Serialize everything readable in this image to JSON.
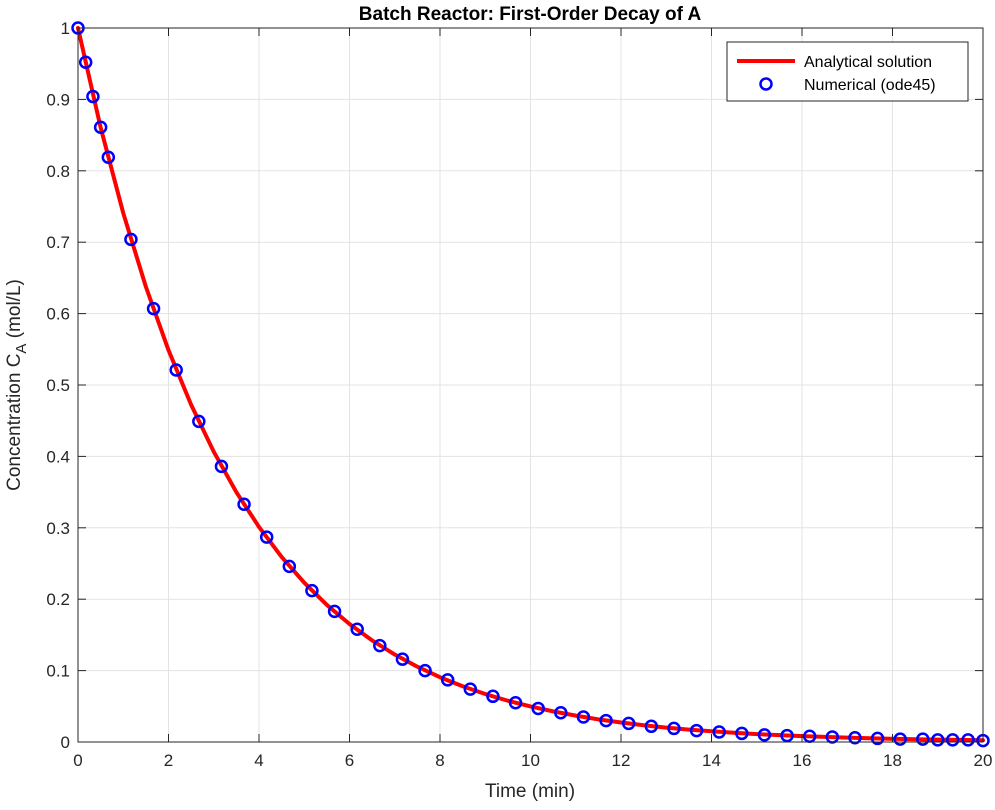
{
  "chart_data": {
    "type": "line",
    "title": "Batch Reactor: First-Order Decay of A",
    "xlabel": "Time (min)",
    "ylabel": {
      "prefix": "Concentration C",
      "subscript": "A",
      "suffix": " (mol/L)"
    },
    "xlim": [
      0,
      20
    ],
    "ylim": [
      0,
      1
    ],
    "xticks": [
      0,
      2,
      4,
      6,
      8,
      10,
      12,
      14,
      16,
      18,
      20
    ],
    "xtick_labels": [
      "0",
      "2",
      "4",
      "6",
      "8",
      "10",
      "12",
      "14",
      "16",
      "18",
      "20"
    ],
    "yticks": [
      0,
      0.1,
      0.2,
      0.3,
      0.4,
      0.5,
      0.6,
      0.7,
      0.8,
      0.9,
      1
    ],
    "ytick_labels": [
      "0",
      "0.1",
      "0.2",
      "0.3",
      "0.4",
      "0.5",
      "0.6",
      "0.7",
      "0.8",
      "0.9",
      "1"
    ],
    "grid": true,
    "legend_position": "top-right",
    "series": [
      {
        "name": "Analytical solution",
        "kind": "line",
        "color": "#ff0000",
        "x": [
          0,
          0.5,
          1,
          1.5,
          2,
          2.5,
          3,
          3.5,
          4,
          4.5,
          5,
          5.5,
          6,
          6.5,
          7,
          7.5,
          8,
          8.5,
          9,
          9.5,
          10,
          10.5,
          11,
          11.5,
          12,
          12.5,
          13,
          13.5,
          14,
          14.5,
          15,
          15.5,
          16,
          16.5,
          17,
          17.5,
          18,
          18.5,
          19,
          19.5,
          20
        ],
        "y": [
          1.0,
          0.8607,
          0.7408,
          0.6376,
          0.5488,
          0.4724,
          0.4066,
          0.3499,
          0.3012,
          0.2592,
          0.2231,
          0.192,
          0.1653,
          0.1423,
          0.1225,
          0.1054,
          0.0907,
          0.0781,
          0.0672,
          0.0578,
          0.0498,
          0.0429,
          0.0369,
          0.0317,
          0.0273,
          0.0235,
          0.0202,
          0.0174,
          0.015,
          0.0129,
          0.0111,
          0.0096,
          0.0082,
          0.0071,
          0.0061,
          0.0052,
          0.0045,
          0.0039,
          0.0033,
          0.0029,
          0.0025
        ]
      },
      {
        "name": "Numerical (ode45)",
        "kind": "markers",
        "marker": "circle",
        "color": "#0000ff",
        "x": [
          0,
          0.17,
          0.33,
          0.5,
          0.67,
          1.17,
          1.67,
          2.17,
          2.67,
          3.17,
          3.67,
          4.17,
          4.67,
          5.17,
          5.67,
          6.17,
          6.67,
          7.17,
          7.67,
          8.17,
          8.67,
          9.17,
          9.67,
          10.17,
          10.67,
          11.17,
          11.67,
          12.17,
          12.67,
          13.17,
          13.67,
          14.17,
          14.67,
          15.17,
          15.67,
          16.17,
          16.67,
          17.17,
          17.67,
          18.17,
          18.67,
          19.0,
          19.33,
          19.67,
          20.0
        ],
        "y": [
          1.0,
          0.952,
          0.904,
          0.861,
          0.819,
          0.704,
          0.607,
          0.521,
          0.449,
          0.386,
          0.333,
          0.287,
          0.246,
          0.212,
          0.183,
          0.158,
          0.135,
          0.116,
          0.1,
          0.087,
          0.074,
          0.064,
          0.055,
          0.047,
          0.041,
          0.035,
          0.03,
          0.026,
          0.022,
          0.019,
          0.016,
          0.014,
          0.012,
          0.01,
          0.009,
          0.008,
          0.007,
          0.006,
          0.005,
          0.004,
          0.004,
          0.003,
          0.003,
          0.003,
          0.002
        ]
      }
    ]
  }
}
